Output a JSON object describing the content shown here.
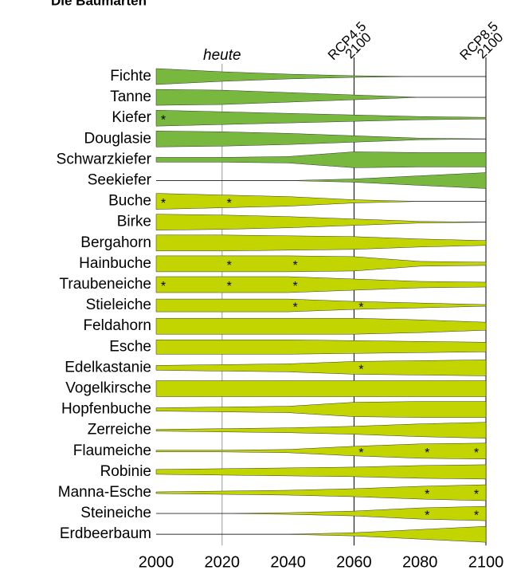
{
  "chart_data": {
    "type": "wedge",
    "title": "Die Baumarten",
    "x": [
      2000,
      2020,
      2040,
      2060,
      2080,
      2100
    ],
    "xlim": [
      2000,
      2100
    ],
    "xticks": [
      2000,
      2020,
      2040,
      2060,
      2080,
      2100
    ],
    "marker": "*",
    "reference_lines": [
      {
        "x": 2020,
        "label": [
          "heute"
        ]
      },
      {
        "x": 2060,
        "label": [
          "RCP4.5",
          "2100"
        ]
      },
      {
        "x": 2100,
        "label": [
          "RCP8.5",
          "2100"
        ]
      }
    ],
    "series": [
      {
        "name": "Fichte",
        "color": "#78b83e",
        "values": [
          1,
          0.6,
          0.3,
          0.1,
          0,
          0
        ],
        "significant": []
      },
      {
        "name": "Tanne",
        "color": "#78b83e",
        "values": [
          1,
          0.9,
          0.6,
          0.3,
          0,
          0
        ],
        "significant": []
      },
      {
        "name": "Kiefer",
        "color": "#78b83e",
        "values": [
          1,
          0.8,
          0.6,
          0.4,
          0.2,
          0.1
        ],
        "significant": [
          2000
        ]
      },
      {
        "name": "Douglasie",
        "color": "#78b83e",
        "values": [
          1,
          0.9,
          0.7,
          0.4,
          0.1,
          0
        ],
        "significant": []
      },
      {
        "name": "Schwarzkiefer",
        "color": "#78b83e",
        "values": [
          0.3,
          0.3,
          0.4,
          1,
          0.9,
          0.9
        ],
        "significant": []
      },
      {
        "name": "Seekiefer",
        "color": "#78b83e",
        "values": [
          0,
          0,
          0,
          0.2,
          0.6,
          1
        ],
        "significant": []
      },
      {
        "name": "Buche",
        "color": "#c3d500",
        "values": [
          1,
          0.8,
          0.6,
          0.2,
          0,
          0
        ],
        "significant": [
          2000,
          2020
        ]
      },
      {
        "name": "Birke",
        "color": "#c3d500",
        "values": [
          1,
          0.9,
          0.7,
          0.4,
          0.1,
          0
        ],
        "significant": []
      },
      {
        "name": "Bergahorn",
        "color": "#c3d500",
        "values": [
          1,
          1,
          0.9,
          0.8,
          0.5,
          0.3
        ],
        "significant": []
      },
      {
        "name": "Hainbuche",
        "color": "#c3d500",
        "values": [
          1,
          1,
          1,
          0.9,
          0.3,
          0.2
        ],
        "significant": [
          2020,
          2040
        ]
      },
      {
        "name": "Traubeneiche",
        "color": "#c3d500",
        "values": [
          1,
          1,
          1,
          0.7,
          0.4,
          0.3
        ],
        "significant": [
          2000,
          2020,
          2040
        ]
      },
      {
        "name": "Stieleiche",
        "color": "#c3d500",
        "values": [
          0.8,
          0.8,
          0.8,
          0.5,
          0.3,
          0.1
        ],
        "significant": [
          2040,
          2060
        ]
      },
      {
        "name": "Feldahorn",
        "color": "#c3d500",
        "values": [
          1,
          1,
          1,
          1,
          0.8,
          0.5
        ],
        "significant": []
      },
      {
        "name": "Esche",
        "color": "#c3d500",
        "values": [
          0.9,
          0.9,
          0.9,
          0.8,
          0.7,
          0.6
        ],
        "significant": []
      },
      {
        "name": "Edelkastanie",
        "color": "#c3d500",
        "values": [
          0.3,
          0.4,
          0.5,
          0.8,
          0.9,
          1
        ],
        "significant": [
          2060
        ]
      },
      {
        "name": "Vogelkirsche",
        "color": "#c3d500",
        "values": [
          1,
          1,
          1,
          1,
          1,
          1
        ],
        "significant": []
      },
      {
        "name": "Hopfenbuche",
        "color": "#c3d500",
        "values": [
          0.2,
          0.3,
          0.4,
          0.9,
          1,
          1
        ],
        "significant": []
      },
      {
        "name": "Zerreiche",
        "color": "#c3d500",
        "values": [
          0.1,
          0.2,
          0.3,
          0.5,
          0.8,
          1
        ],
        "significant": []
      },
      {
        "name": "Flaumeiche",
        "color": "#c3d500",
        "values": [
          0.1,
          0.1,
          0.2,
          0.6,
          0.9,
          1
        ],
        "significant": [
          2060,
          2080,
          2100
        ]
      },
      {
        "name": "Robinie",
        "color": "#c3d500",
        "values": [
          0.3,
          0.4,
          0.5,
          0.6,
          0.8,
          0.9
        ],
        "significant": []
      },
      {
        "name": "Manna-Esche",
        "color": "#c3d500",
        "values": [
          0.1,
          0.2,
          0.3,
          0.5,
          0.8,
          1
        ],
        "significant": [
          2080,
          2100
        ]
      },
      {
        "name": "Steineiche",
        "color": "#c3d500",
        "values": [
          0,
          0,
          0.1,
          0.3,
          0.7,
          0.9
        ],
        "significant": [
          2080,
          2100
        ]
      },
      {
        "name": "Erdbeerbaum",
        "color": "#c3d500",
        "values": [
          0,
          0,
          0,
          0.2,
          0.6,
          1
        ],
        "significant": []
      }
    ]
  }
}
